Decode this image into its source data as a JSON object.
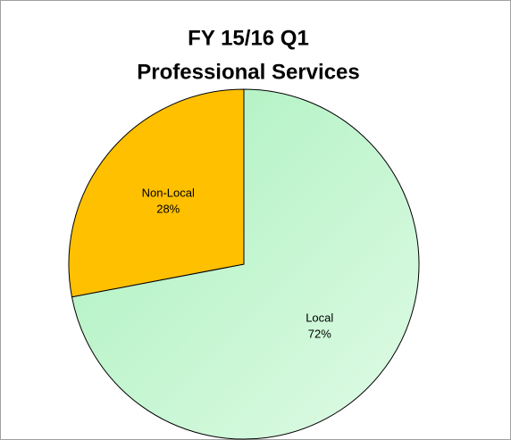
{
  "chart_data": {
    "type": "pie",
    "title": [
      "FY 15/16 Q1",
      "Professional Services"
    ],
    "categories": [
      "Local",
      "Non-Local"
    ],
    "values": [
      72,
      28
    ],
    "value_labels": [
      "72%",
      "28%"
    ],
    "colors": [
      "#c8f5d2",
      "#ffc000"
    ]
  }
}
